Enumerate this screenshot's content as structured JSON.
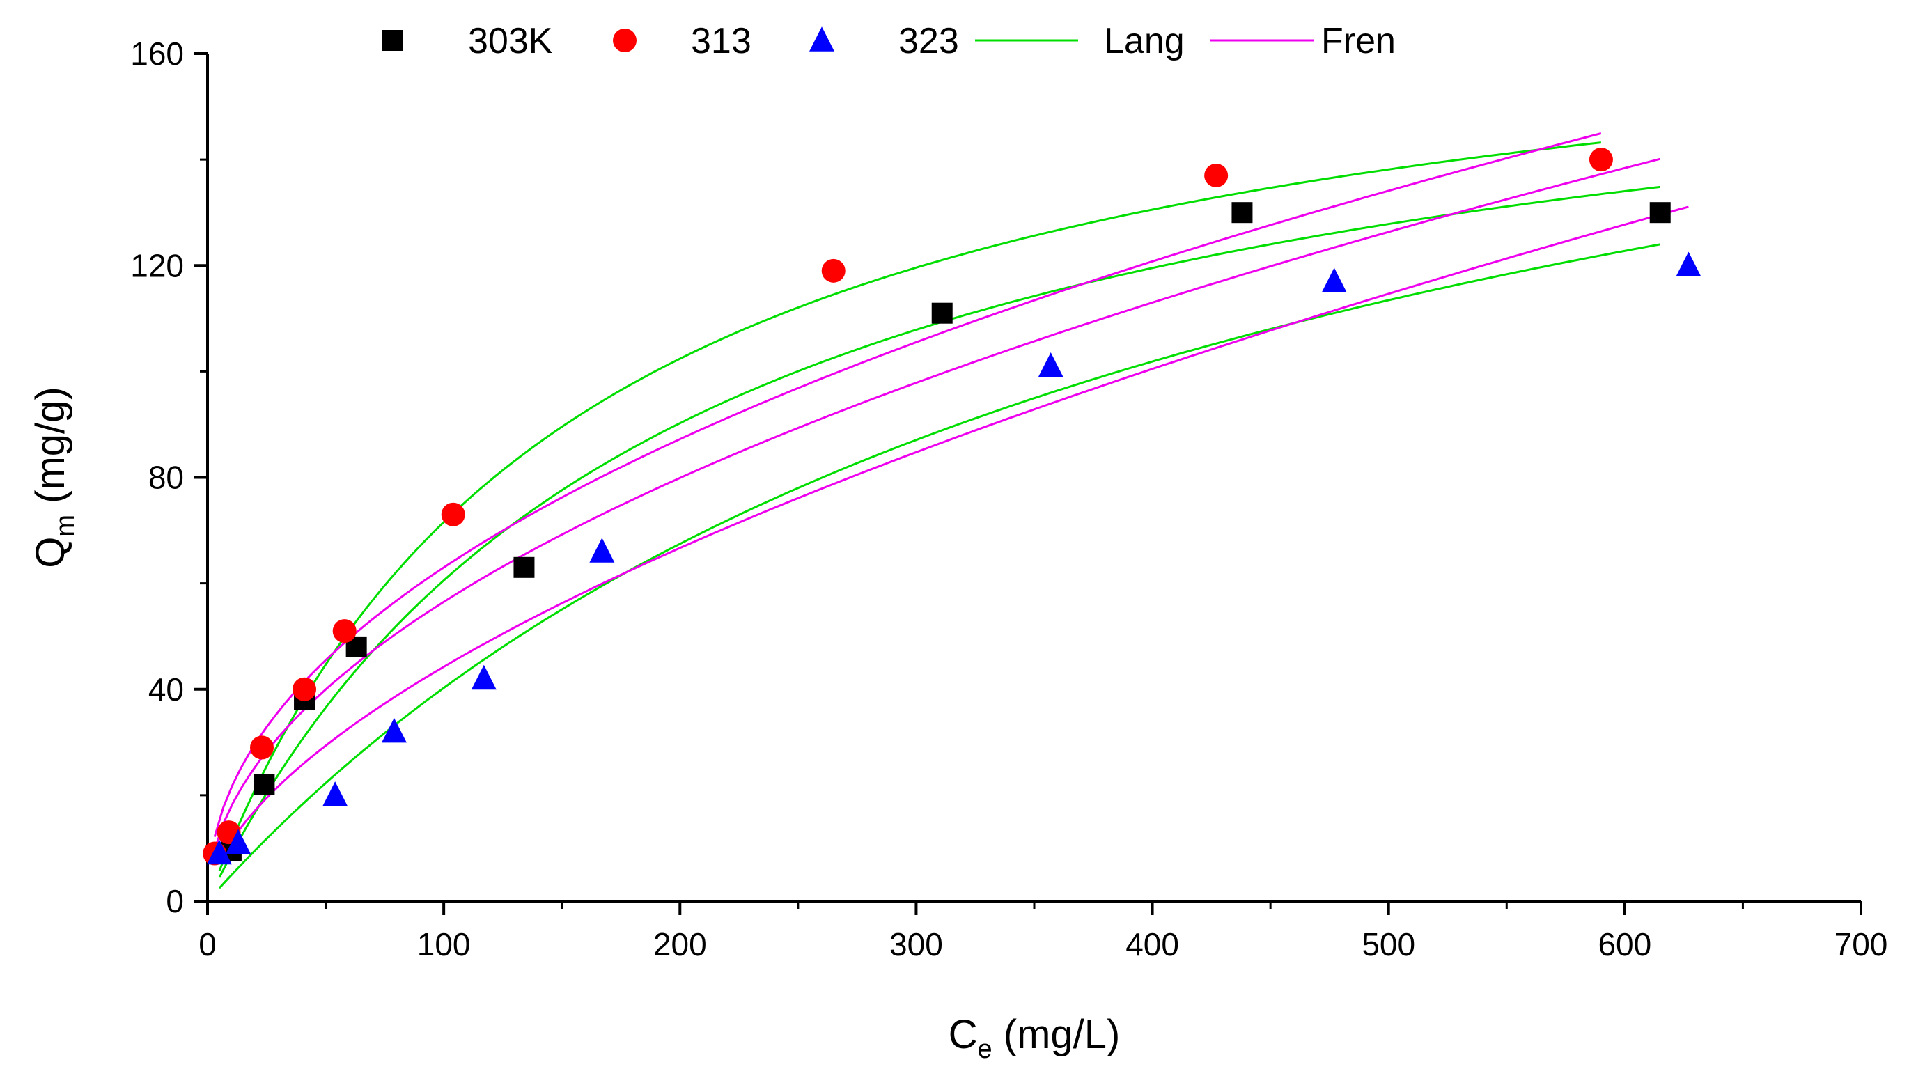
{
  "chart_data": {
    "type": "scatter",
    "title": "",
    "xlabel": {
      "main": "C",
      "sub": "e",
      "unit": " (mg/L)"
    },
    "ylabel": {
      "main": "Q",
      "sub": "m",
      "unit": " (mg/g)"
    },
    "xlim": [
      0,
      700
    ],
    "ylim": [
      0,
      160
    ],
    "x_ticks": [
      0,
      100,
      200,
      300,
      400,
      500,
      600,
      700
    ],
    "x_tick_labels": [
      "0",
      "100",
      "200",
      "300",
      "400",
      "500",
      "600",
      "700"
    ],
    "y_ticks": [
      0,
      40,
      80,
      120,
      160
    ],
    "y_tick_labels": [
      "0",
      "40",
      "80",
      "120",
      "160"
    ],
    "x_minor_step": 50,
    "y_minor_step": 20,
    "grid": false,
    "legend_position": "top",
    "legend": [
      {
        "label": "303K",
        "kind": "marker",
        "marker": "square",
        "color": "#000000"
      },
      {
        "label": "313",
        "kind": "marker",
        "marker": "circle",
        "color": "#ff0000"
      },
      {
        "label": "323",
        "kind": "marker",
        "marker": "triangle",
        "color": "#0000ff"
      },
      {
        "label": "Lang",
        "kind": "line",
        "color": "#00dd00"
      },
      {
        "label": "Fren",
        "kind": "line",
        "color": "#ee00ee"
      }
    ],
    "series": [
      {
        "name": "303K",
        "marker": "square",
        "color": "#000000",
        "x": [
          5,
          10,
          24,
          41,
          63,
          134,
          311,
          438,
          615
        ],
        "y": [
          9,
          9.5,
          22,
          38,
          48,
          63,
          111,
          130,
          130
        ]
      },
      {
        "name": "313",
        "marker": "circle",
        "color": "#ff0000",
        "x": [
          3,
          9,
          23,
          41,
          58,
          104,
          265,
          427,
          590
        ],
        "y": [
          9,
          13,
          29,
          40,
          51,
          73,
          119,
          137,
          140
        ]
      },
      {
        "name": "323",
        "marker": "triangle",
        "color": "#0000ff",
        "x": [
          5,
          13,
          54,
          79,
          117,
          167,
          357,
          477,
          627
        ],
        "y": [
          9,
          11,
          20,
          32,
          42,
          66,
          101,
          117,
          120
        ]
      }
    ],
    "fits": [
      {
        "name": "Lang",
        "series": "303K",
        "model": "langmuir",
        "qm": 177,
        "kl": 0.0052,
        "x_range": [
          5,
          615
        ],
        "color": "#00dd00"
      },
      {
        "name": "Lang",
        "series": "313",
        "model": "langmuir",
        "qm": 180,
        "kl": 0.0066,
        "x_range": [
          5,
          590
        ],
        "color": "#00dd00"
      },
      {
        "name": "Lang",
        "series": "323",
        "model": "langmuir",
        "qm": 208,
        "kl": 0.0024,
        "x_range": [
          5,
          615
        ],
        "color": "#00dd00"
      },
      {
        "name": "Fren",
        "series": "303K",
        "model": "freundlich",
        "kf": 5.65,
        "n": 2.0,
        "x_range": [
          3,
          615
        ],
        "color": "#ee00ee"
      },
      {
        "name": "Fren",
        "series": "313",
        "model": "freundlich",
        "kf": 7.25,
        "n": 2.13,
        "x_range": [
          3,
          590
        ],
        "color": "#ee00ee"
      },
      {
        "name": "Fren",
        "series": "323",
        "model": "freundlich",
        "kf": 2.9,
        "n": 1.69,
        "x_range": [
          5,
          627
        ],
        "color": "#ee00ee"
      }
    ]
  }
}
